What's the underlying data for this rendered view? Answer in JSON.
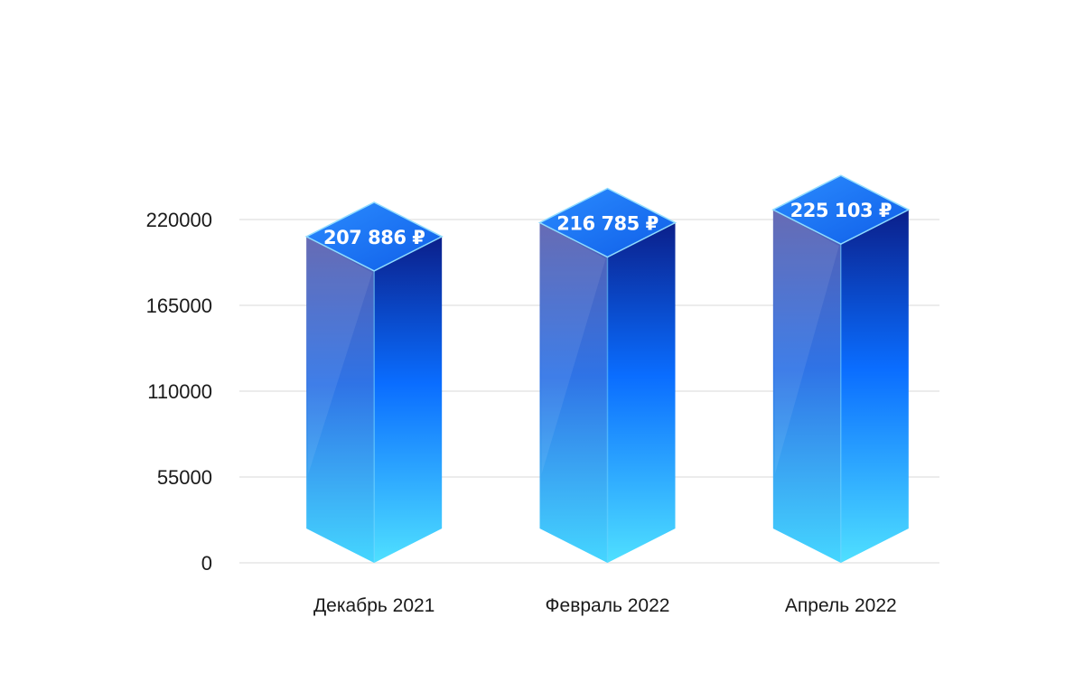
{
  "chart_data": {
    "type": "bar",
    "categories": [
      "Декабрь 2021",
      "Февраль 2022",
      "Апрель 2022"
    ],
    "values": [
      207886,
      216785,
      225103
    ],
    "data_labels": [
      "207 886 ₽",
      "216 785 ₽",
      "225 103 ₽"
    ],
    "yticks": [
      0,
      55000,
      110000,
      165000,
      220000
    ],
    "ytick_labels": [
      "0",
      "55000",
      "110000",
      "165000",
      "220000"
    ],
    "ylim": [
      0,
      220000
    ],
    "grid": true,
    "legend": "none",
    "colors": {
      "top_light": "#2b8cff",
      "top_dark": "#0f5ee8",
      "front_top": "#5a5fae",
      "front_bottom": "#45d6ff",
      "side_top": "#0b1f8a",
      "side_mid": "#0a6dff",
      "side_bottom": "#4fe0ff"
    }
  }
}
